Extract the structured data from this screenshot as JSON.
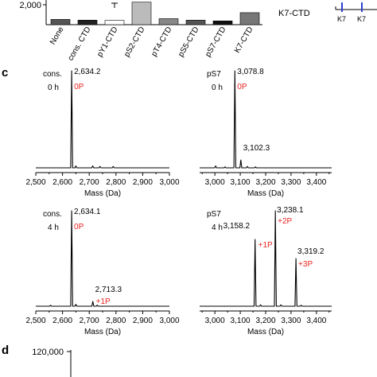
{
  "panel_labels": {
    "c": "c",
    "d": "d"
  },
  "colors": {
    "red": "#e8231f",
    "black": "#000000"
  },
  "top_fragment": {
    "ytick": "2,000",
    "categories": [
      "None",
      "cons. CTD",
      "pY1-CTD",
      "pS2-CTD",
      "pT4-CTD",
      "pS5-CTD",
      "pS7-CTD",
      "K7-CTD"
    ],
    "legend_label": "K7-CTD",
    "k7_labels": [
      "K7",
      "K7",
      "K7"
    ]
  },
  "panel_d": {
    "ytick": "120,000"
  },
  "chart_data": [
    {
      "type": "bar",
      "title": "",
      "categories": [
        "None",
        "cons. CTD",
        "pY1-CTD",
        "pS2-CTD",
        "pT4-CTD",
        "pS5-CTD",
        "pS7-CTD",
        "K7-CTD"
      ],
      "values": [
        350,
        300,
        280,
        1500,
        400,
        300,
        250,
        800
      ],
      "colors": [
        "#555555",
        "#222222",
        "#ffffff",
        "#bbbbbb",
        "#888888",
        "#555555",
        "#111111",
        "#777777"
      ],
      "ylim": [
        0,
        2600
      ],
      "note": "top of panel cropped"
    },
    {
      "type": "line",
      "sample": "cons.",
      "time": "0 h",
      "xlabel": "Mass (Da)",
      "xticks": [
        "2,500",
        "2,600",
        "2,700",
        "2,800",
        "2,900",
        "3,000"
      ],
      "xlim": [
        2500,
        3000
      ],
      "peaks": [
        {
          "mass": 2634.2,
          "label": "2,634.2",
          "tag": "0P",
          "height": 1.0
        }
      ],
      "minor_peaks": [
        {
          "mass": 2650,
          "height": 0.02
        },
        {
          "mass": 2713,
          "height": 0.02
        },
        {
          "mass": 2740,
          "height": 0.015
        },
        {
          "mass": 2790,
          "height": 0.015
        }
      ]
    },
    {
      "type": "line",
      "sample": "pS7",
      "time": "0 h",
      "xlabel": "Mass (Da)",
      "xticks": [
        "3,000",
        "3,100",
        "3,200",
        "3,300",
        "3,400"
      ],
      "xlim": [
        2940,
        3460
      ],
      "peaks": [
        {
          "mass": 3078.8,
          "label": "3,078.8",
          "tag": "0P",
          "height": 1.0
        },
        {
          "mass": 3102.3,
          "label": "3,102.3",
          "tag": "",
          "height": 0.08
        }
      ],
      "minor_peaks": [
        {
          "mass": 3003,
          "height": 0.02
        },
        {
          "mass": 3040,
          "height": 0.01
        },
        {
          "mass": 3128,
          "height": 0.015
        },
        {
          "mass": 3160,
          "height": 0.01
        }
      ]
    },
    {
      "type": "line",
      "sample": "cons.",
      "time": "4 h",
      "xlabel": "Mass (Da)",
      "xticks": [
        "2,500",
        "2,600",
        "2,700",
        "2,800",
        "2,900",
        "3,000"
      ],
      "xlim": [
        2500,
        3000
      ],
      "peaks": [
        {
          "mass": 2634.1,
          "label": "2,634.1",
          "tag": "0P",
          "height": 1.0
        },
        {
          "mass": 2713.3,
          "label": "2,713.3",
          "tag": "+1P",
          "height": 0.05
        }
      ],
      "minor_peaks": [
        {
          "mass": 2555,
          "height": 0.01
        },
        {
          "mass": 2650,
          "height": 0.02
        },
        {
          "mass": 2730,
          "height": 0.012
        }
      ]
    },
    {
      "type": "line",
      "sample": "pS7",
      "time": "4 h",
      "xlabel": "Mass (Da)",
      "xticks": [
        "3,000",
        "3,100",
        "3,200",
        "3,300",
        "3,400"
      ],
      "xlim": [
        2940,
        3460
      ],
      "peaks": [
        {
          "mass": 3158.2,
          "label": "3,158.2",
          "tag": "+1P",
          "height": 0.7
        },
        {
          "mass": 3238.1,
          "label": "3,238.1",
          "tag": "+2P",
          "height": 1.0
        },
        {
          "mass": 3319.2,
          "label": "3,319.2",
          "tag": "+3P",
          "height": 0.5
        }
      ],
      "minor_peaks": [
        {
          "mass": 3180,
          "height": 0.015
        },
        {
          "mass": 3260,
          "height": 0.015
        },
        {
          "mass": 3340,
          "height": 0.01
        }
      ]
    }
  ]
}
